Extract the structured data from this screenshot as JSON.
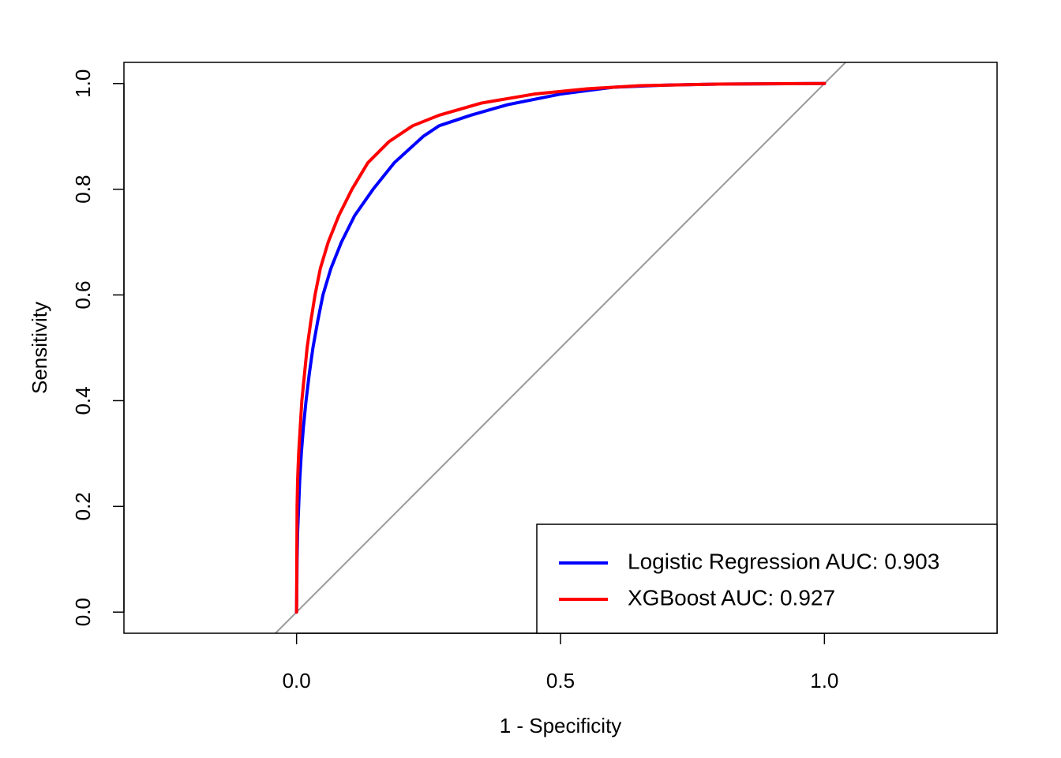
{
  "chart_data": {
    "type": "line",
    "title": "",
    "xlabel": "1 - Specificity",
    "ylabel": "Sensitivity",
    "xlim": [
      -0.327,
      1.327
    ],
    "ylim": [
      -0.04,
      1.04
    ],
    "x_ticks": [
      {
        "value": 0.0,
        "label": "0.0"
      },
      {
        "value": 0.5,
        "label": "0.5"
      },
      {
        "value": 1.0,
        "label": "1.0"
      }
    ],
    "y_ticks": [
      {
        "value": 0.0,
        "label": "0.0"
      },
      {
        "value": 0.2,
        "label": "0.2"
      },
      {
        "value": 0.4,
        "label": "0.4"
      },
      {
        "value": 0.6,
        "label": "0.6"
      },
      {
        "value": 0.8,
        "label": "0.8"
      },
      {
        "value": 1.0,
        "label": "1.0"
      }
    ],
    "grid": false,
    "legend_position": "bottom-right",
    "reference_line": {
      "slope": 1,
      "intercept": 0,
      "color": "#999999"
    },
    "series": [
      {
        "name": "Logistic Regression AUC: 0.903",
        "color": "#0000ff",
        "points": [
          [
            0,
            0
          ],
          [
            0.001,
            0.1
          ],
          [
            0.002,
            0.15
          ],
          [
            0.004,
            0.2
          ],
          [
            0.006,
            0.25
          ],
          [
            0.009,
            0.3
          ],
          [
            0.013,
            0.35
          ],
          [
            0.018,
            0.4
          ],
          [
            0.024,
            0.45
          ],
          [
            0.031,
            0.5
          ],
          [
            0.04,
            0.55
          ],
          [
            0.05,
            0.6
          ],
          [
            0.065,
            0.65
          ],
          [
            0.085,
            0.7
          ],
          [
            0.11,
            0.75
          ],
          [
            0.145,
            0.8
          ],
          [
            0.185,
            0.85
          ],
          [
            0.24,
            0.9
          ],
          [
            0.27,
            0.92
          ],
          [
            0.33,
            0.94
          ],
          [
            0.4,
            0.96
          ],
          [
            0.5,
            0.98
          ],
          [
            0.6,
            0.993
          ],
          [
            0.7,
            0.997
          ],
          [
            0.8,
            0.999
          ],
          [
            1,
            1
          ]
        ]
      },
      {
        "name": "XGBoost AUC: 0.927",
        "color": "#ff0000",
        "points": [
          [
            0,
            0
          ],
          [
            0.0005,
            0.1
          ],
          [
            0.001,
            0.2
          ],
          [
            0.002,
            0.25
          ],
          [
            0.004,
            0.3
          ],
          [
            0.007,
            0.35
          ],
          [
            0.01,
            0.4
          ],
          [
            0.015,
            0.45
          ],
          [
            0.02,
            0.5
          ],
          [
            0.027,
            0.55
          ],
          [
            0.035,
            0.6
          ],
          [
            0.045,
            0.65
          ],
          [
            0.06,
            0.7
          ],
          [
            0.08,
            0.75
          ],
          [
            0.105,
            0.8
          ],
          [
            0.135,
            0.85
          ],
          [
            0.175,
            0.89
          ],
          [
            0.22,
            0.92
          ],
          [
            0.27,
            0.94
          ],
          [
            0.35,
            0.963
          ],
          [
            0.45,
            0.98
          ],
          [
            0.55,
            0.99
          ],
          [
            0.65,
            0.996
          ],
          [
            0.8,
            0.999
          ],
          [
            1,
            1
          ]
        ]
      }
    ]
  }
}
